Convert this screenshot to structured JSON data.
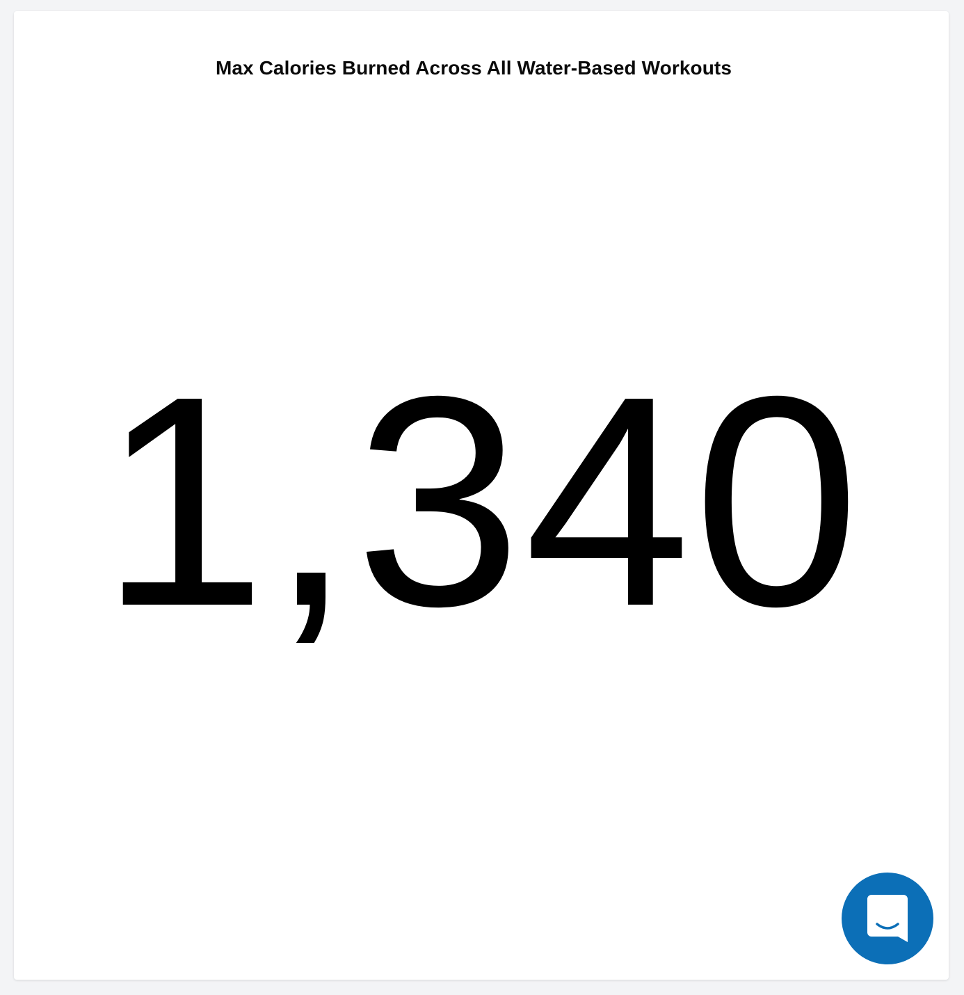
{
  "widget": {
    "title": "Max Calories Burned Across All Water-Based Workouts",
    "value": "1,340"
  },
  "chat_launcher": {
    "icon": "chat-bubble-smile-icon",
    "color": "#0c6fb7"
  }
}
